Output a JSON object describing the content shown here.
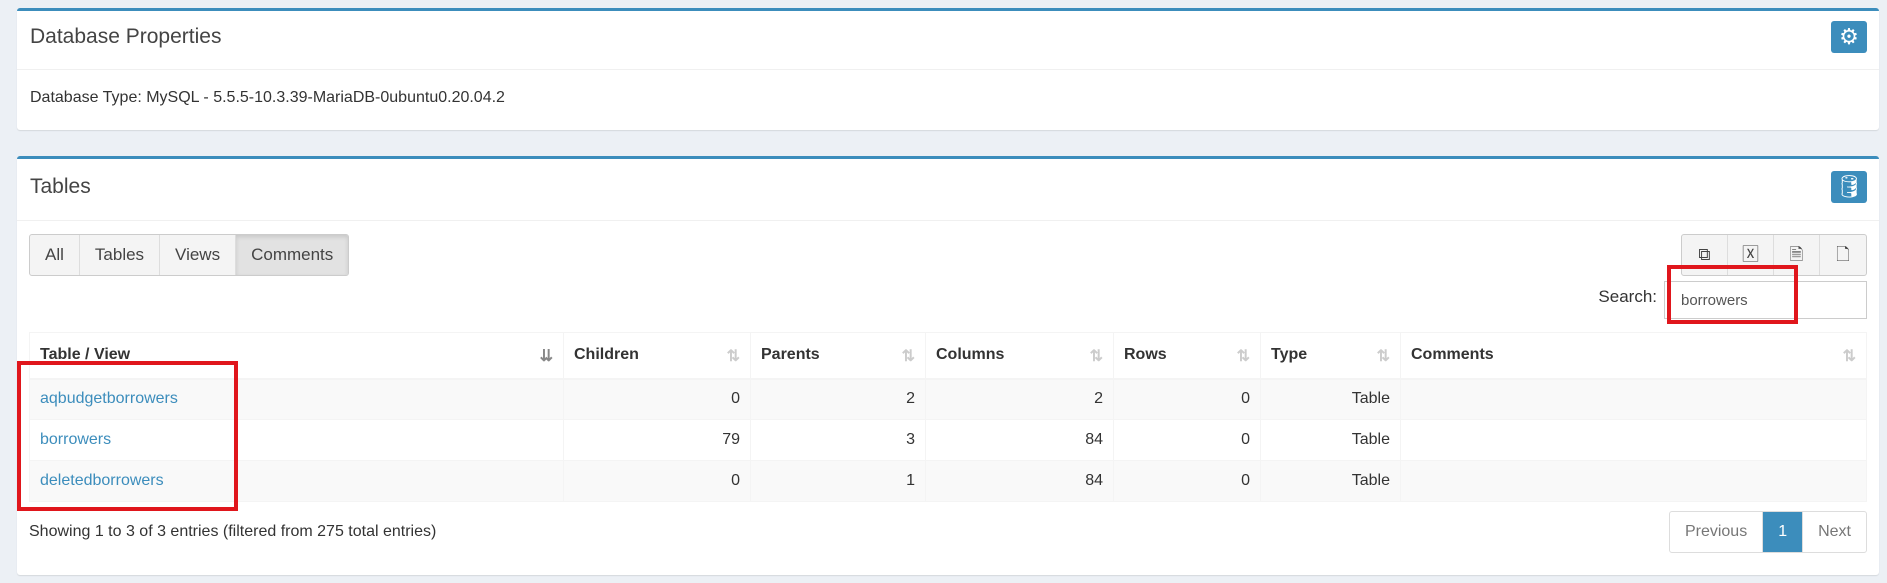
{
  "props": {
    "title": "Database Properties",
    "db_type": "Database Type: MySQL - 5.5.5-10.3.39-MariaDB-0ubuntu0.20.04.2",
    "icon": "gear-icon"
  },
  "tables": {
    "title": "Tables",
    "icon": "database-icon",
    "filters": [
      "All",
      "Tables",
      "Views",
      "Comments"
    ],
    "active_filter": "Comments",
    "export_icons": [
      "copy-icon",
      "excel-icon",
      "csv-icon",
      "pdf-icon"
    ],
    "search_label": "Search:",
    "search_value": "borrowers",
    "columns": [
      "Table / View",
      "Children",
      "Parents",
      "Columns",
      "Rows",
      "Type",
      "Comments"
    ],
    "rows": [
      {
        "name": "aqbudgetborrowers",
        "children": "0",
        "parents": "2",
        "columns": "2",
        "rows": "0",
        "type": "Table",
        "comments": ""
      },
      {
        "name": "borrowers",
        "children": "79",
        "parents": "3",
        "columns": "84",
        "rows": "0",
        "type": "Table",
        "comments": ""
      },
      {
        "name": "deletedborrowers",
        "children": "0",
        "parents": "1",
        "columns": "84",
        "rows": "0",
        "type": "Table",
        "comments": ""
      }
    ],
    "info": "Showing 1 to 3 of 3 entries (filtered from 275 total entries)",
    "pagination": {
      "prev": "Previous",
      "current": "1",
      "next": "Next"
    }
  },
  "colors": {
    "accent": "#3c8dbc",
    "highlight": "#e0161c"
  }
}
